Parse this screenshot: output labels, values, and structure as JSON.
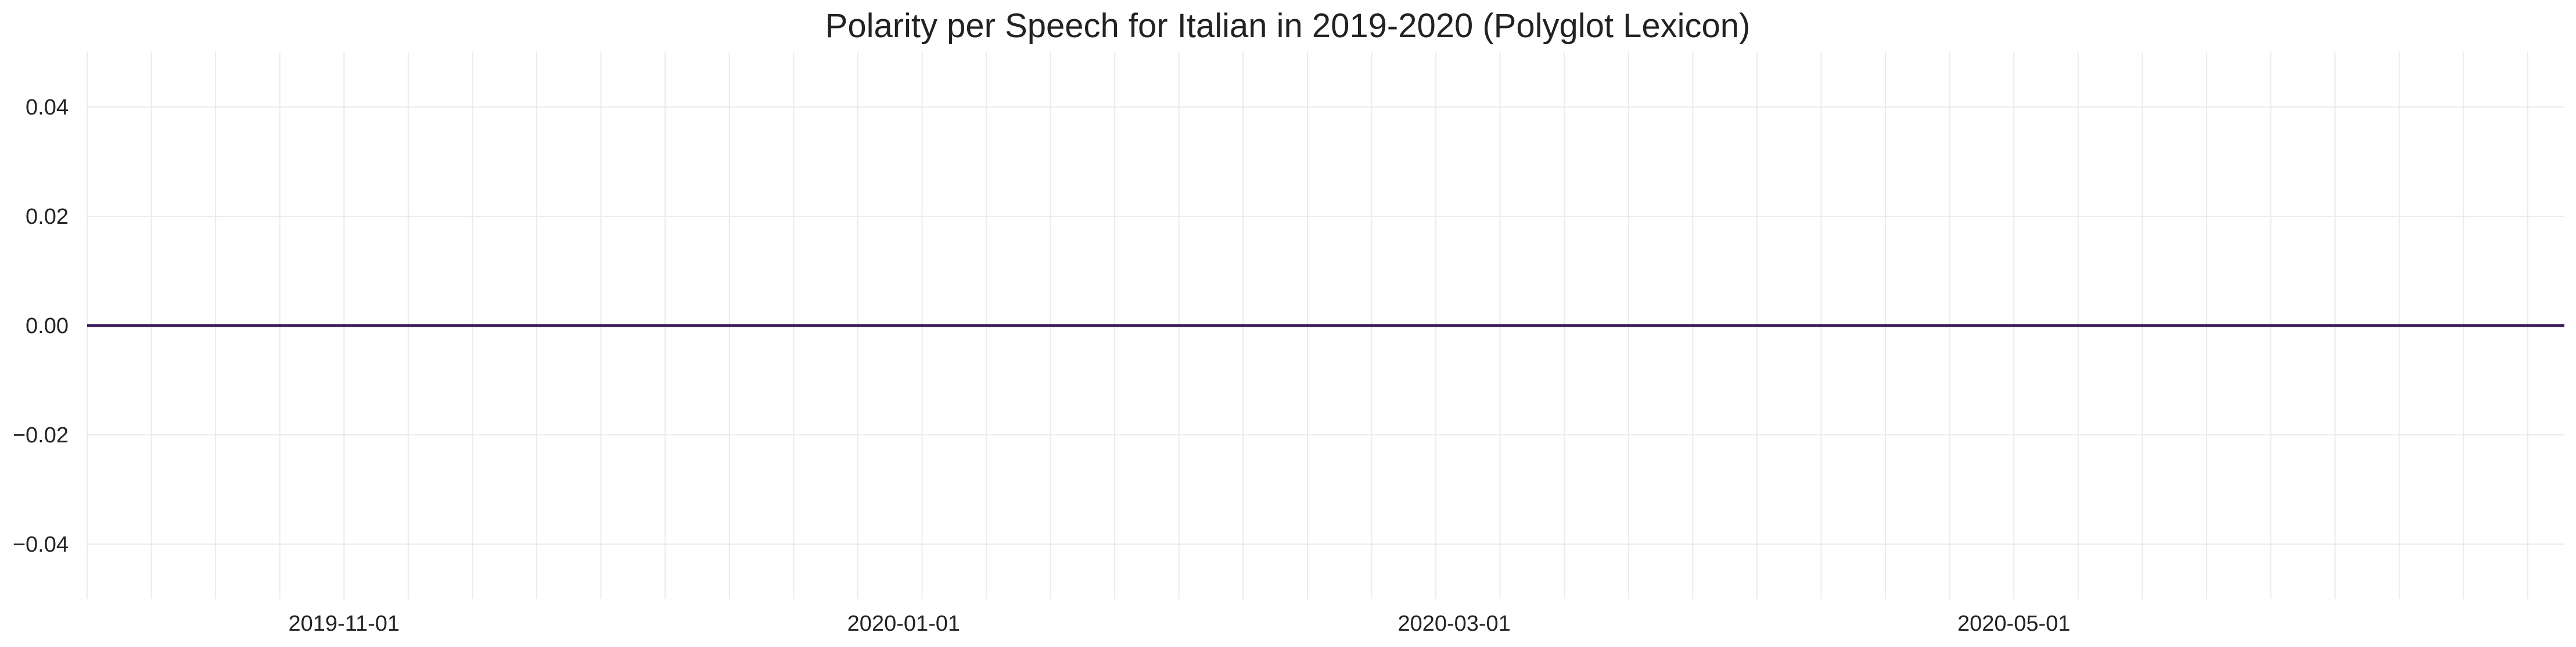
{
  "chart_data": {
    "type": "line",
    "title": "Polarity per Speech for Italian in 2019-2020 (Polyglot Lexicon)",
    "xlabel": "",
    "ylabel": "",
    "x_range": [
      "2019-10-04",
      "2020-06-30"
    ],
    "x_ticks": [
      "2019-11-01",
      "2020-01-01",
      "2020-03-01",
      "2020-05-01"
    ],
    "y_ticks": [
      0.04,
      0.02,
      0.0,
      -0.02,
      -0.04
    ],
    "y_tick_labels": [
      "0.04",
      "0.02",
      "0.00",
      "−0.02",
      "−0.04"
    ],
    "ylim": [
      -0.05,
      0.05
    ],
    "grid": true,
    "series": [
      {
        "color": "#3b1a5a",
        "x": [
          "2019-10-04",
          "2019-11-01",
          "2020-01-01",
          "2020-03-01",
          "2020-05-01",
          "2020-06-30"
        ],
        "y": [
          0.0,
          0.0,
          0.0,
          0.0,
          0.0,
          0.0
        ]
      }
    ],
    "colors": {
      "line": "#3b1a5a",
      "grid": "#ebebeb",
      "text": "#222222"
    }
  }
}
